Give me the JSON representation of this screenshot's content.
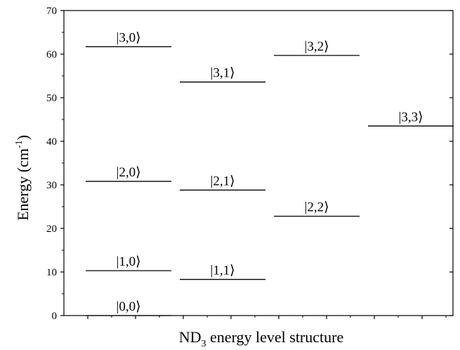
{
  "chart_data": {
    "type": "energy-level-diagram",
    "ylabel": {
      "main": "Energy (cm",
      "sup": "-1",
      "close": ")"
    },
    "xlabel": {
      "pre": "ND",
      "sub": "3",
      "post": " energy level structure"
    },
    "ylim": [
      0,
      70
    ],
    "yticks": [
      "0",
      "10",
      "20",
      "30",
      "40",
      "50",
      "60",
      "70"
    ],
    "grid": false,
    "columns": 4,
    "levels": [
      {
        "label": "|0,0⟩",
        "column": 0,
        "energy": 0
      },
      {
        "label": "|1,0⟩",
        "column": 0,
        "energy": 10.3
      },
      {
        "label": "|2,0⟩",
        "column": 0,
        "energy": 30.8
      },
      {
        "label": "|3,0⟩",
        "column": 0,
        "energy": 61.7
      },
      {
        "label": "|1,1⟩",
        "column": 1,
        "energy": 8.3
      },
      {
        "label": "|2,1⟩",
        "column": 1,
        "energy": 28.8
      },
      {
        "label": "|3,1⟩",
        "column": 1,
        "energy": 53.6
      },
      {
        "label": "|2,2⟩",
        "column": 2,
        "energy": 22.8
      },
      {
        "label": "|3,2⟩",
        "column": 2,
        "energy": 59.7
      },
      {
        "label": "|3,3⟩",
        "column": 3,
        "energy": 43.5
      }
    ]
  }
}
